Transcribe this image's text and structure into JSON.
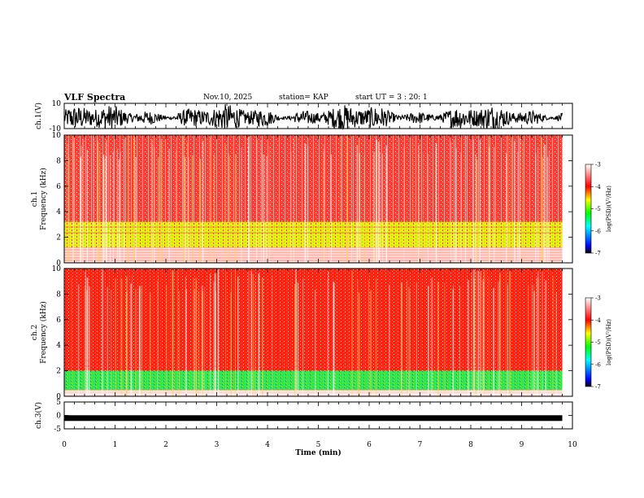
{
  "header": {
    "title": "VLF Spectra",
    "date": "Nov.10, 2025",
    "station": "station= KAP",
    "start": "start  UT =   3 : 20: 1"
  },
  "chart_data": [
    {
      "type": "line",
      "panel": "ch1-waveform",
      "ylabel": "ch.1(V)",
      "ylim": [
        -10,
        10
      ],
      "yticks": [
        "10",
        "-10"
      ],
      "description_series": "noise-like waveform"
    },
    {
      "type": "heatmap",
      "panel": "ch1-spectrogram",
      "ylabel": "ch.1\nFrequency (kHz)",
      "ylim": [
        0,
        10
      ],
      "yticks": [
        "0",
        "2",
        "4",
        "6",
        "8",
        "10"
      ],
      "colorbar": {
        "label": "log(PSD)(V²/Hz)",
        "ticks": [
          "-3",
          "-4",
          "-5",
          "-6",
          "-7"
        ],
        "range": [
          -7,
          -3
        ]
      },
      "bands": [
        {
          "from_khz": 1.2,
          "to_khz": 3.2,
          "level": -4.9
        },
        {
          "from_khz": 3.2,
          "to_khz": 10,
          "level": -3.6
        }
      ]
    },
    {
      "type": "heatmap",
      "panel": "ch2-spectrogram",
      "ylabel": "ch.2\nFrequency (kHz)",
      "ylim": [
        0,
        10
      ],
      "yticks": [
        "0",
        "2",
        "4",
        "6",
        "8",
        "10"
      ],
      "colorbar": {
        "label": "log(PSD)(V²/Hz)",
        "ticks": [
          "-3",
          "-4",
          "-5",
          "-6",
          "-7"
        ],
        "range": [
          -7,
          -3
        ]
      },
      "bands": [
        {
          "from_khz": 0.5,
          "to_khz": 2.0,
          "level": -5.6
        },
        {
          "from_khz": 2.0,
          "to_khz": 10,
          "level": -3.9
        }
      ]
    },
    {
      "type": "line",
      "panel": "ch3-waveform",
      "ylabel": "ch.3(V)",
      "ylim": [
        -5,
        5
      ],
      "yticks": [
        "5",
        "0",
        "-5"
      ],
      "level": -1
    }
  ],
  "xaxis": {
    "label": "Time (min)",
    "xlim": [
      0,
      10
    ],
    "ticks": [
      "0",
      "1",
      "2",
      "3",
      "4",
      "5",
      "6",
      "7",
      "8",
      "9",
      "10"
    ],
    "data_end": 9.8
  },
  "colors": {
    "colormap": [
      "#000000",
      "#0000ff",
      "#00ffff",
      "#00ff00",
      "#ffff00",
      "#ff0000",
      "#ffffff"
    ]
  }
}
